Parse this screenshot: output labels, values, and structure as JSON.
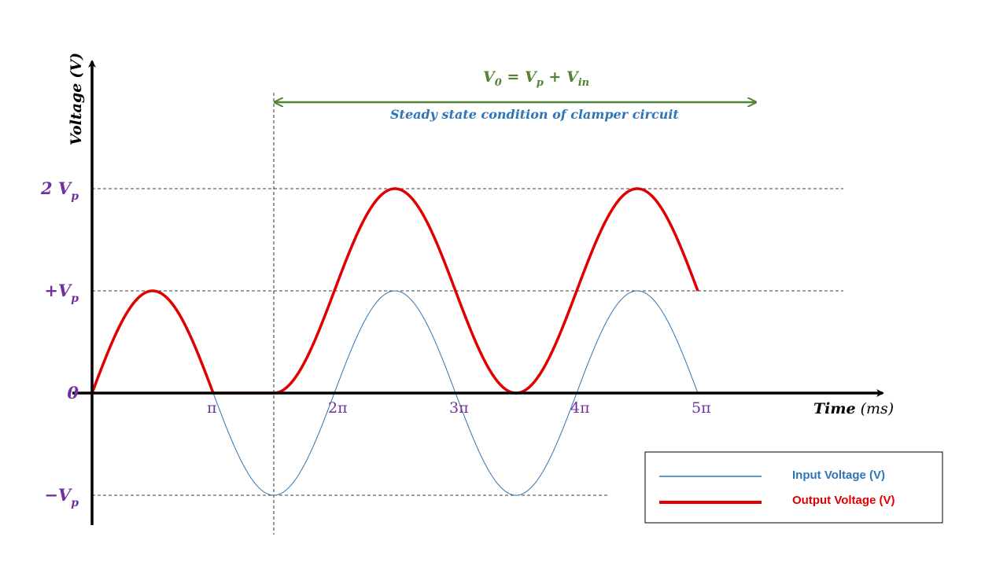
{
  "chart_data": {
    "type": "line",
    "ylabel_main": "Voltage",
    "ylabel_unit": "(V)",
    "xlabel_main": "Time",
    "xlabel_unit": "(ms)",
    "x_unit": "π",
    "y_unit": "Vp",
    "xlim": [
      0,
      5
    ],
    "ylim": [
      -1,
      2
    ],
    "x_ticks": [
      {
        "value": 1,
        "label": "π"
      },
      {
        "value": 2,
        "label": "2π"
      },
      {
        "value": 3,
        "label": "3π"
      },
      {
        "value": 4,
        "label": "4π"
      },
      {
        "value": 5,
        "label": "5π"
      }
    ],
    "y_ticks": [
      {
        "value": 2,
        "main": "2 V",
        "sub": "p"
      },
      {
        "value": 1,
        "main": "+V",
        "sub": "p"
      },
      {
        "value": 0,
        "main": "0",
        "sub": ""
      },
      {
        "value": -1,
        "main": "−V",
        "sub": "p"
      }
    ],
    "series": [
      {
        "name": "Input Voltage (V)",
        "color": "#2e75b6",
        "formula": "sin(pi*x)",
        "x": [
          0,
          0.25,
          0.5,
          0.75,
          1,
          1.25,
          1.5,
          1.75,
          2,
          2.25,
          2.5,
          2.75,
          3,
          3.25,
          3.5,
          3.75,
          4,
          4.25,
          4.5,
          4.75,
          5
        ],
        "y": [
          0,
          0.707,
          1,
          0.707,
          0,
          -0.707,
          -1,
          -0.707,
          0,
          0.707,
          1,
          0.707,
          0,
          -0.707,
          -1,
          -0.707,
          0,
          0.707,
          1,
          0.707,
          0
        ],
        "draw_from": 1
      },
      {
        "name": "Output Voltage (V)",
        "color": "#e00000",
        "formula": "0..1: sin(pi*x); 1..1.5: 0; 1.5..5: 1+sin(pi*x)",
        "x": [
          0,
          0.25,
          0.5,
          0.75,
          1,
          1.5,
          1.75,
          2,
          2.25,
          2.5,
          2.75,
          3,
          3.25,
          3.5,
          3.75,
          4,
          4.25,
          4.5,
          4.75,
          5
        ],
        "y": [
          0,
          0.707,
          1,
          0.707,
          0,
          0,
          0.293,
          1,
          1.707,
          2,
          1.707,
          1,
          0.293,
          0,
          0.293,
          1,
          1.707,
          2,
          1.707,
          1
        ]
      }
    ],
    "reference_lines": {
      "horizontal": [
        2,
        1,
        -1
      ],
      "vertical": [
        1.5
      ]
    },
    "annotation": {
      "equation_main": "V",
      "equation_sub": "0",
      "equation_rest_1": " = V",
      "equation_sub2": "p",
      "equation_rest_2": " + V",
      "equation_sub3": "in",
      "steady_text": "Steady state condition of clamper circuit",
      "arrow_from": 1.5,
      "arrow_to": 5.5
    },
    "legend": {
      "position": "bottom-right",
      "entries": [
        {
          "label": "Input Voltage (V)",
          "color": "#2e75b6"
        },
        {
          "label": "Output Voltage (V)",
          "color": "#e00000"
        }
      ]
    },
    "grid": false
  }
}
